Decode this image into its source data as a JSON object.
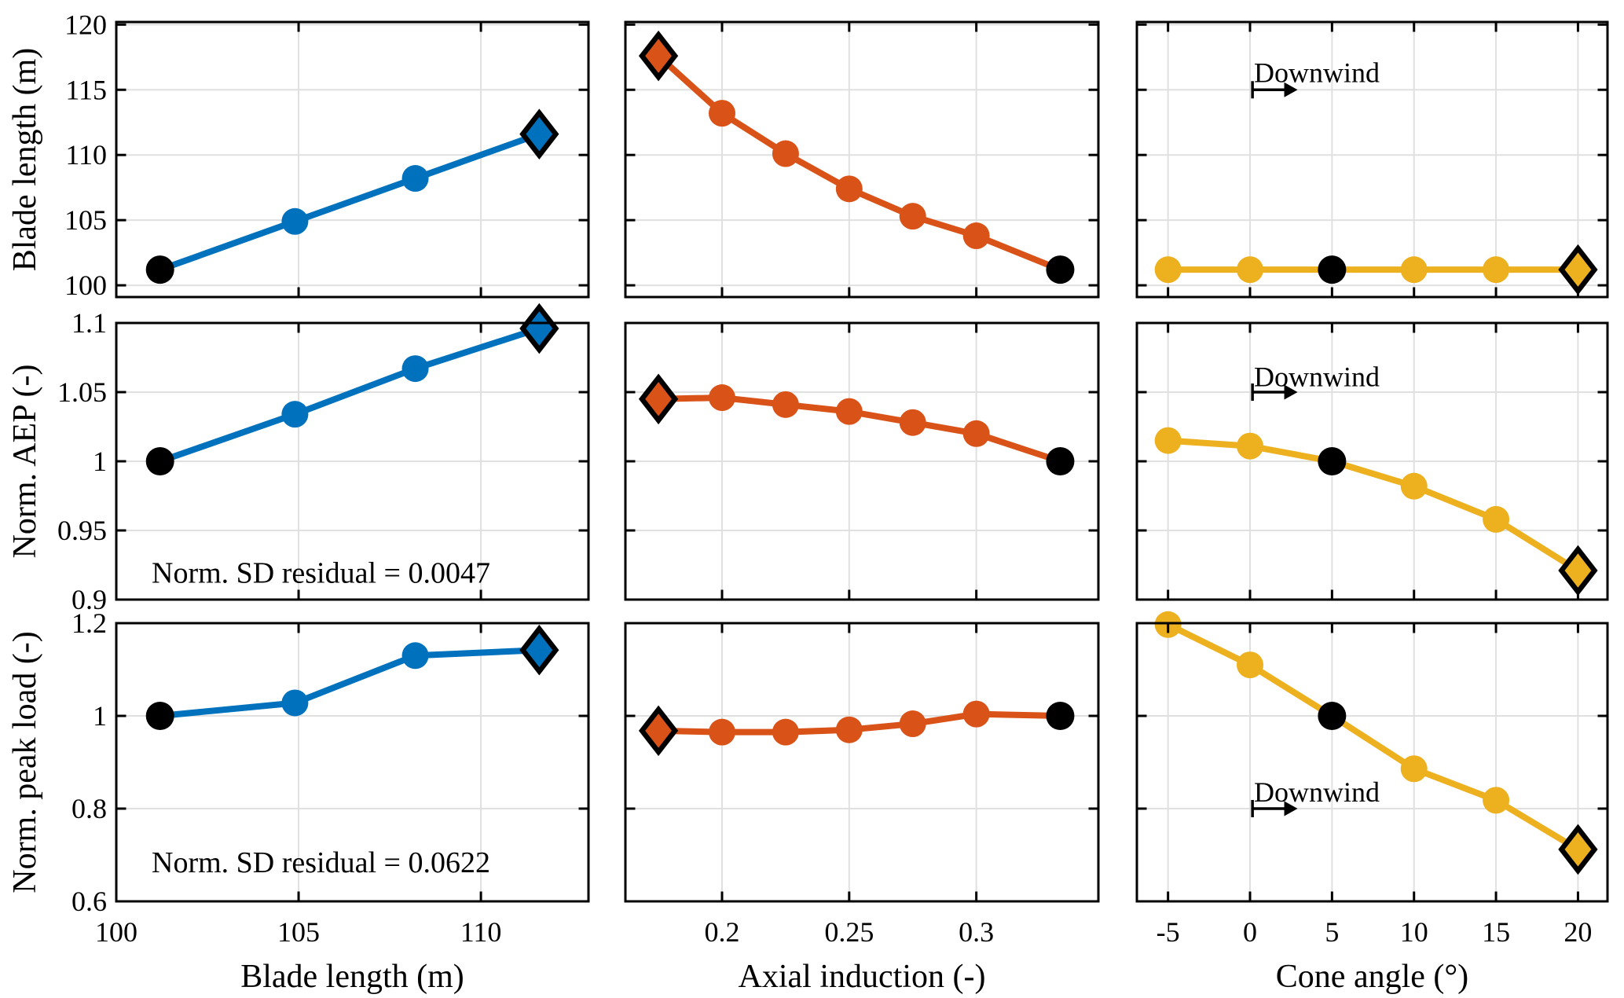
{
  "figure": {
    "description": "3x3 grid of MATLAB-style parameter sweep plots for wind turbine rotor design",
    "background": "#ffffff",
    "colors": {
      "blue_series": "#0072BD",
      "orange_series": "#D95319",
      "yellow_series": "#EDB120",
      "baseline_marker": "#000000",
      "gridline": "#E0E0E0",
      "axis_border": "#000000"
    },
    "marker_semantics": {
      "baseline": {
        "shape": "circle",
        "fill": "#000000"
      },
      "optimum": {
        "shape": "diamond",
        "outline": "#000000",
        "fill": "series color"
      },
      "sweep_point": {
        "shape": "circle",
        "fill": "series color"
      }
    }
  },
  "chart_data": {
    "type": "line",
    "grid": true,
    "legend_position": "none",
    "rows": [
      {
        "ylabel": "Blade length (m)",
        "ylim": [
          99.1,
          120.2
        ],
        "yticks": [
          100,
          105,
          110,
          115,
          120
        ],
        "ytick_labels": [
          "100",
          "105",
          "110",
          "115",
          "120"
        ]
      },
      {
        "ylabel": "Norm. AEP (-)",
        "ylim": [
          0.9,
          1.1
        ],
        "yticks": [
          0.9,
          0.95,
          1.0,
          1.05,
          1.1
        ],
        "ytick_labels": [
          "0.9",
          "0.95",
          "1",
          "1.05",
          "1.1"
        ]
      },
      {
        "ylabel": "Norm. peak load (-)",
        "ylim": [
          0.6,
          1.2
        ],
        "yticks": [
          0.6,
          0.8,
          1.0,
          1.2
        ],
        "ytick_labels": [
          "0.6",
          "0.8",
          "1",
          "1.2"
        ]
      }
    ],
    "cols": [
      {
        "xlabel": "Blade length (m)",
        "xlim": [
          100,
          112.95
        ],
        "xticks": [
          100,
          105,
          110
        ],
        "xtick_labels": [
          "100",
          "105",
          "110"
        ],
        "color": "#0072BD"
      },
      {
        "xlabel": "Axial induction (-)",
        "xlim": [
          0.162,
          0.348
        ],
        "xticks": [
          0.2,
          0.25,
          0.3
        ],
        "xtick_labels": [
          "0.2",
          "0.25",
          "0.3"
        ],
        "color": "#D95319"
      },
      {
        "xlabel": "Cone angle (°)",
        "xlim": [
          -6.9,
          21.8
        ],
        "xticks": [
          -5,
          0,
          5,
          10,
          15,
          20
        ],
        "xtick_labels": [
          "-5",
          "0",
          "5",
          "10",
          "15",
          "20"
        ],
        "color": "#EDB120"
      }
    ],
    "panels": [
      {
        "row": 0,
        "col": 0,
        "x": [
          101.2,
          104.9,
          108.2,
          111.6
        ],
        "y": [
          101.2,
          104.9,
          108.2,
          111.6
        ],
        "baseline_index": 0,
        "optimum_index": 3,
        "annotations": []
      },
      {
        "row": 0,
        "col": 1,
        "x": [
          0.175,
          0.2,
          0.225,
          0.25,
          0.275,
          0.3,
          0.333
        ],
        "y": [
          117.6,
          113.2,
          110.1,
          107.4,
          105.3,
          103.8,
          101.2
        ],
        "baseline_index": 6,
        "optimum_index": 0,
        "annotations": []
      },
      {
        "row": 0,
        "col": 2,
        "x": [
          -5,
          0,
          5,
          10,
          15,
          20
        ],
        "y": [
          101.2,
          101.2,
          101.2,
          101.2,
          101.2,
          101.2
        ],
        "baseline_index": 2,
        "optimum_index": 5,
        "annotations": [
          {
            "type": "text",
            "text": "Downwind",
            "x": 0.24,
            "y": 116.3,
            "align": "left",
            "class": "downwind"
          },
          {
            "type": "harrow",
            "x1": 0.15,
            "x2": 2.9,
            "y": 115
          }
        ]
      },
      {
        "row": 1,
        "col": 0,
        "x": [
          101.2,
          104.9,
          108.2,
          111.6
        ],
        "y": [
          1.0,
          1.034,
          1.067,
          1.096
        ],
        "baseline_index": 0,
        "optimum_index": 3,
        "annotations": [
          {
            "type": "text",
            "text": "Norm. SD residual = 0.0047",
            "x": 100.97,
            "y": 0.919,
            "align": "left",
            "class": "annotation"
          }
        ]
      },
      {
        "row": 1,
        "col": 1,
        "x": [
          0.175,
          0.2,
          0.225,
          0.25,
          0.275,
          0.3,
          0.333
        ],
        "y": [
          1.045,
          1.046,
          1.041,
          1.036,
          1.028,
          1.02,
          1.0
        ],
        "baseline_index": 6,
        "optimum_index": 0,
        "annotations": []
      },
      {
        "row": 1,
        "col": 2,
        "x": [
          -5,
          0,
          5,
          10,
          15,
          20
        ],
        "y": [
          1.015,
          1.011,
          1.0,
          0.982,
          0.958,
          0.921
        ],
        "baseline_index": 2,
        "optimum_index": 5,
        "annotations": [
          {
            "type": "text",
            "text": "Downwind",
            "x": 0.24,
            "y": 1.061,
            "align": "left",
            "class": "downwind"
          },
          {
            "type": "harrow",
            "x1": 0.15,
            "x2": 2.9,
            "y": 1.05
          }
        ]
      },
      {
        "row": 2,
        "col": 0,
        "x": [
          101.2,
          104.9,
          108.2,
          111.6
        ],
        "y": [
          1.0,
          1.028,
          1.13,
          1.142
        ],
        "baseline_index": 0,
        "optimum_index": 3,
        "annotations": [
          {
            "type": "text",
            "text": "Norm. SD residual = 0.0622",
            "x": 100.97,
            "y": 0.683,
            "align": "left",
            "class": "annotation"
          }
        ]
      },
      {
        "row": 2,
        "col": 1,
        "x": [
          0.175,
          0.2,
          0.225,
          0.25,
          0.275,
          0.3,
          0.333
        ],
        "y": [
          0.968,
          0.965,
          0.965,
          0.97,
          0.983,
          1.004,
          1.0
        ],
        "baseline_index": 6,
        "optimum_index": 0,
        "annotations": []
      },
      {
        "row": 2,
        "col": 2,
        "x": [
          -5,
          0,
          5,
          10,
          15,
          20
        ],
        "y": [
          1.197,
          1.11,
          1.0,
          0.886,
          0.818,
          0.712
        ],
        "baseline_index": 2,
        "optimum_index": 5,
        "annotations": [
          {
            "type": "text",
            "text": "Downwind",
            "x": 0.24,
            "y": 0.836,
            "align": "left",
            "class": "downwind"
          },
          {
            "type": "harrow",
            "x1": 0.15,
            "x2": 2.9,
            "y": 0.8
          }
        ]
      }
    ]
  }
}
